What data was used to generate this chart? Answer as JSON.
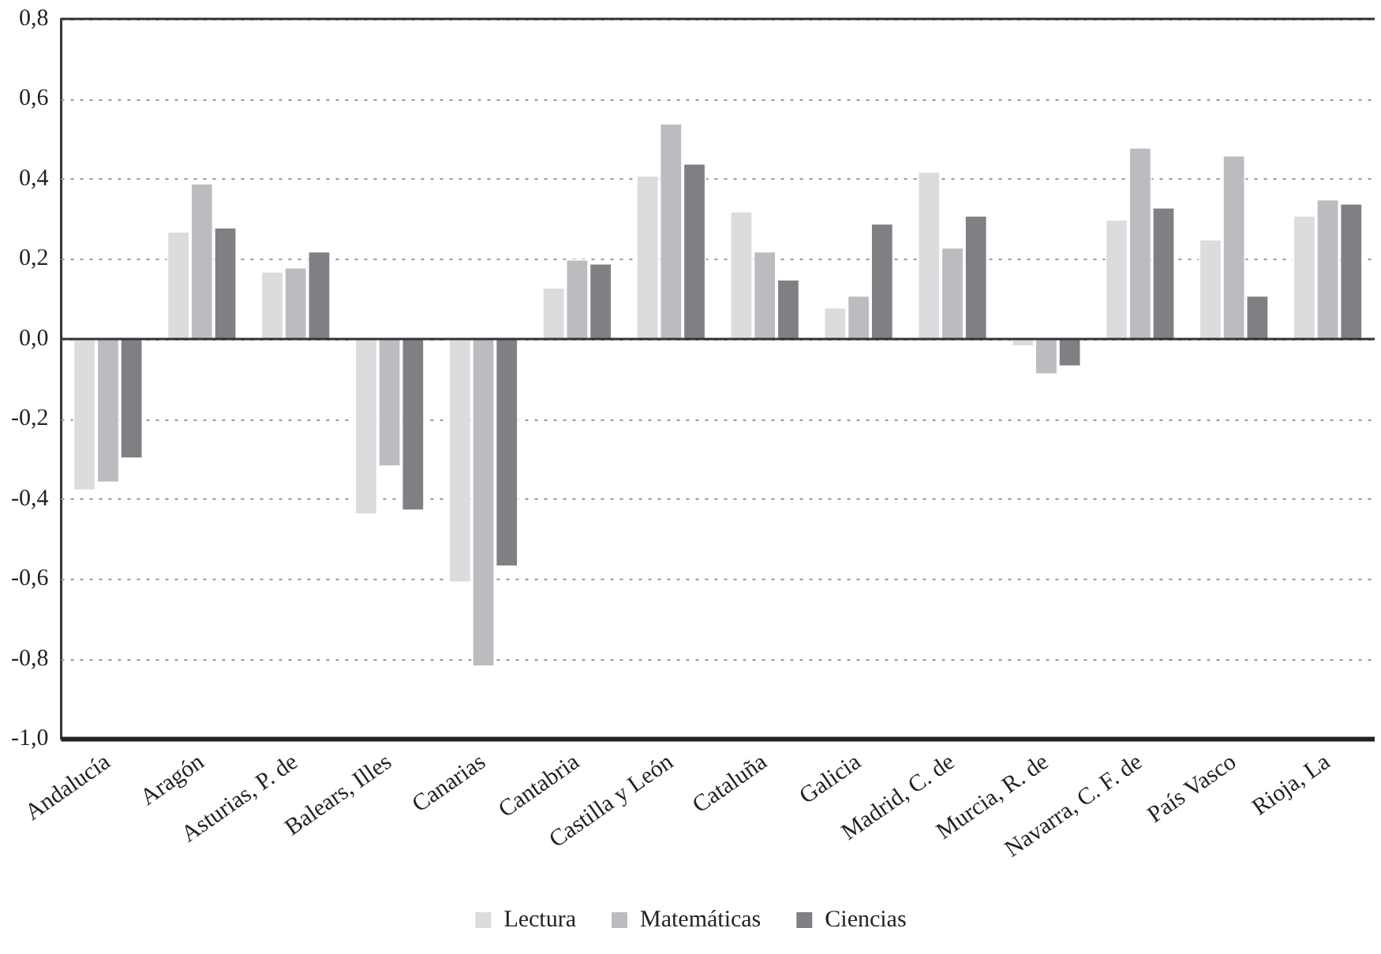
{
  "chart_data": {
    "type": "bar",
    "categories": [
      "Andalucía",
      "Aragón",
      "Asturias, P. de",
      "Balears, Illes",
      "Canarias",
      "Cantabria",
      "Castilla y León",
      "Cataluña",
      "Galicia",
      "Madrid, C. de",
      "Murcia, R. de",
      "Navarra, C. F. de",
      "País Vasco",
      "Rioja, La"
    ],
    "series": [
      {
        "name": "Lectura",
        "color": "#dcdcde",
        "values": [
          -0.38,
          0.27,
          0.17,
          -0.44,
          -0.61,
          0.13,
          0.41,
          0.32,
          0.08,
          0.42,
          -0.02,
          0.3,
          0.25,
          0.31
        ]
      },
      {
        "name": "Matemáticas",
        "color": "#bbbcc0",
        "values": [
          -0.36,
          0.39,
          0.18,
          -0.32,
          -0.82,
          0.2,
          0.54,
          0.22,
          0.11,
          0.23,
          -0.09,
          0.48,
          0.46,
          0.35
        ]
      },
      {
        "name": "Ciencias",
        "color": "#808084",
        "values": [
          -0.3,
          0.28,
          0.22,
          -0.43,
          -0.57,
          0.19,
          0.44,
          0.15,
          0.29,
          0.31,
          -0.07,
          0.33,
          0.11,
          0.34
        ]
      }
    ],
    "ylim": [
      -1.0,
      0.8
    ],
    "yticks": [
      {
        "value": -1.0,
        "label": "-1,0"
      },
      {
        "value": -0.8,
        "label": "-0,8"
      },
      {
        "value": -0.6,
        "label": "-0,6"
      },
      {
        "value": -0.4,
        "label": "-0,4"
      },
      {
        "value": -0.2,
        "label": "-0,2"
      },
      {
        "value": 0,
        "label": "0,0"
      },
      {
        "value": 0.2,
        "label": "0,2"
      },
      {
        "value": 0.4,
        "label": "0,4"
      },
      {
        "value": 0.6,
        "label": "0,6"
      },
      {
        "value": 0.8,
        "label": "0,8"
      }
    ],
    "grid": "y",
    "legend": "bottom"
  }
}
